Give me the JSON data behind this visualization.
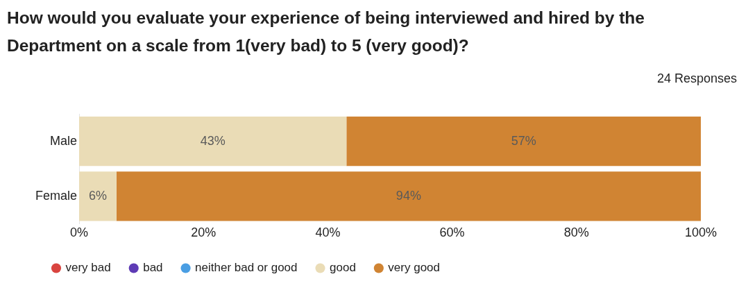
{
  "chart_data": {
    "type": "bar",
    "orientation": "horizontal",
    "stacked": true,
    "title": "How would you evaluate your experience of being interviewed and hired by the Department on a scale from 1(very bad) to 5 (very good)?",
    "annotations": [
      "24 Responses"
    ],
    "categories": [
      "Male",
      "Female"
    ],
    "series": [
      {
        "name": "very bad",
        "color": "#d9443f",
        "values": [
          0,
          0
        ],
        "value_labels": [
          null,
          null
        ]
      },
      {
        "name": "bad",
        "color": "#5e3bb5",
        "values": [
          0,
          0
        ],
        "value_labels": [
          null,
          null
        ]
      },
      {
        "name": "neither bad or good",
        "color": "#4a9ee3",
        "values": [
          0,
          0
        ],
        "value_labels": [
          null,
          null
        ]
      },
      {
        "name": "good",
        "color": "#eadcb6",
        "values": [
          43,
          6
        ],
        "value_labels": [
          "43%",
          "6%"
        ]
      },
      {
        "name": "very good",
        "color": "#d08433",
        "values": [
          57,
          94
        ],
        "value_labels": [
          "57%",
          "94%"
        ]
      }
    ],
    "xlim": [
      0,
      100
    ],
    "xticks": [
      {
        "value": 0,
        "label": "0%"
      },
      {
        "value": 20,
        "label": "20%"
      },
      {
        "value": 40,
        "label": "40%"
      },
      {
        "value": 60,
        "label": "60%"
      },
      {
        "value": 80,
        "label": "80%"
      },
      {
        "value": 100,
        "label": "100%"
      }
    ],
    "grid": false,
    "legend": "bottom",
    "marker": "circle"
  }
}
